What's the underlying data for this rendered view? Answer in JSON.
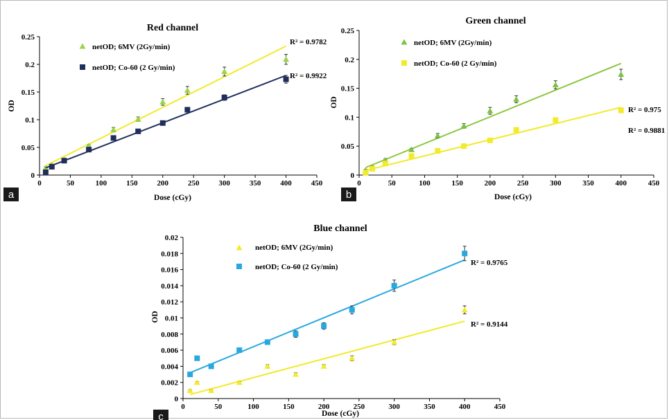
{
  "chart_data": [
    {
      "panel": "a",
      "type": "scatter",
      "title": "Red channel",
      "xlabel": "Dose (cGy)",
      "ylabel": "OD",
      "xlim": [
        0,
        450
      ],
      "ylim": [
        0,
        0.25
      ],
      "xticks": [
        "0",
        "50",
        "100",
        "150",
        "200",
        "250",
        "300",
        "350",
        "400",
        "450"
      ],
      "yticks": [
        "0",
        "0.05",
        "0.1",
        "0.15",
        "0.2",
        "0.25"
      ],
      "series": [
        {
          "name": "netOD; 6MV (2Gy/min)",
          "marker": "triangle",
          "color": "#9bd445",
          "fit_color": "#f2ea2a",
          "x": [
            10,
            20,
            40,
            80,
            120,
            160,
            200,
            240,
            300,
            400
          ],
          "y": [
            0.013,
            0.018,
            0.028,
            0.053,
            0.082,
            0.101,
            0.132,
            0.153,
            0.187,
            0.209
          ],
          "err": [
            0.002,
            0.002,
            0.002,
            0.002,
            0.004,
            0.004,
            0.006,
            0.007,
            0.008,
            0.009
          ],
          "fit": [
            [
              10,
              0.017
            ],
            [
              400,
              0.233
            ]
          ],
          "r2": "R² = 0.9782"
        },
        {
          "name": "netOD; Co-60 (2 Gy/min)",
          "marker": "square",
          "color": "#1f2e5c",
          "fit_color": "#1f2e5c",
          "x": [
            10,
            20,
            40,
            80,
            120,
            160,
            200,
            240,
            300,
            400
          ],
          "y": [
            0.005,
            0.015,
            0.026,
            0.046,
            0.067,
            0.079,
            0.094,
            0.118,
            0.14,
            0.173
          ],
          "err": [
            0.002,
            0.002,
            0.002,
            0.002,
            0.003,
            0.003,
            0.003,
            0.004,
            0.005,
            0.007
          ],
          "fit": [
            [
              10,
              0.013
            ],
            [
              400,
              0.18
            ]
          ],
          "r2": "R² = 0.9922"
        }
      ]
    },
    {
      "panel": "b",
      "type": "scatter",
      "title": "Green channel",
      "xlabel": "Dose (cGy)",
      "ylabel": "OD",
      "xlim": [
        0,
        450
      ],
      "ylim": [
        0,
        0.25
      ],
      "xticks": [
        "0",
        "50",
        "100",
        "150",
        "200",
        "250",
        "300",
        "350",
        "400",
        "450"
      ],
      "yticks": [
        "0",
        "0.05",
        "0.1",
        "0.15",
        "0.2",
        "0.25"
      ],
      "series": [
        {
          "name": "netOD; 6MV (2Gy/min)",
          "marker": "triangle",
          "color": "#7dc242",
          "fit_color": "#8cc63f",
          "x": [
            10,
            20,
            40,
            80,
            120,
            160,
            200,
            240,
            300,
            400
          ],
          "y": [
            0.008,
            0.014,
            0.026,
            0.044,
            0.068,
            0.085,
            0.111,
            0.131,
            0.156,
            0.174
          ],
          "err": [
            0.002,
            0.002,
            0.002,
            0.002,
            0.004,
            0.004,
            0.006,
            0.006,
            0.007,
            0.009
          ],
          "fit": [
            [
              10,
              0.013
            ],
            [
              400,
              0.193
            ]
          ],
          "r2": "R² = 0.975"
        },
        {
          "name": "netOD; Co-60 (2 Gy/min)",
          "marker": "square",
          "color": "#f2ea2a",
          "fit_color": "#f2ea2a",
          "x": [
            10,
            20,
            40,
            80,
            120,
            160,
            200,
            240,
            300,
            400
          ],
          "y": [
            0.004,
            0.011,
            0.02,
            0.033,
            0.042,
            0.05,
            0.06,
            0.078,
            0.095,
            0.112
          ],
          "err": [
            0.001,
            0.001,
            0.001,
            0.001,
            0.001,
            0.002,
            0.002,
            0.002,
            0.003,
            0.004
          ],
          "fit": [
            [
              10,
              0.008
            ],
            [
              400,
              0.117
            ]
          ],
          "r2": "R² = 0.9881"
        }
      ]
    },
    {
      "panel": "c",
      "type": "scatter",
      "title": "Blue channel",
      "xlabel": "Dose (cGy)",
      "ylabel": "OD",
      "xlim": [
        0,
        450
      ],
      "ylim": [
        0,
        0.02
      ],
      "xticks": [
        "0",
        "50",
        "100",
        "150",
        "200",
        "250",
        "300",
        "350",
        "400",
        "450"
      ],
      "yticks": [
        "0",
        "0.002",
        "0.004",
        "0.006",
        "0.008",
        "0.01",
        "0.012",
        "0.014",
        "0.016",
        "0.018",
        "0.02"
      ],
      "series": [
        {
          "name": "netOD; 6MV (2Gy/min)",
          "marker": "triangle",
          "color": "#f2ea2a",
          "fit_color": "#f2ea2a",
          "x": [
            10,
            20,
            40,
            80,
            120,
            160,
            200,
            240,
            300,
            400
          ],
          "y": [
            0.001,
            0.002,
            0.001,
            0.002,
            0.004,
            0.003,
            0.004,
            0.005,
            0.007,
            0.011
          ],
          "err": [
            0.0001,
            0.0001,
            0.0001,
            0.0001,
            0.0002,
            0.0002,
            0.0002,
            0.0003,
            0.0003,
            0.0005
          ],
          "fit": [
            [
              10,
              0.0005
            ],
            [
              400,
              0.0096
            ]
          ],
          "r2": "R² = 0.9144"
        },
        {
          "name": "netOD; Co-60 (2 Gy/min)",
          "marker": "square",
          "color": "#29a8e0",
          "fit_color": "#29a8e0",
          "x": [
            10,
            20,
            40,
            80,
            120,
            160,
            200,
            240,
            300,
            400
          ],
          "y": [
            0.003,
            0.005,
            0.004,
            0.006,
            0.007,
            0.008,
            0.009,
            0.011,
            0.014,
            0.018
          ],
          "err": [
            0.0001,
            0.0001,
            0.0001,
            0.0002,
            0.0002,
            0.0004,
            0.0004,
            0.0005,
            0.0007,
            0.0009
          ],
          "fit": [
            [
              10,
              0.0032
            ],
            [
              400,
              0.0172
            ]
          ],
          "r2": "R² = 0.9765"
        }
      ]
    }
  ]
}
